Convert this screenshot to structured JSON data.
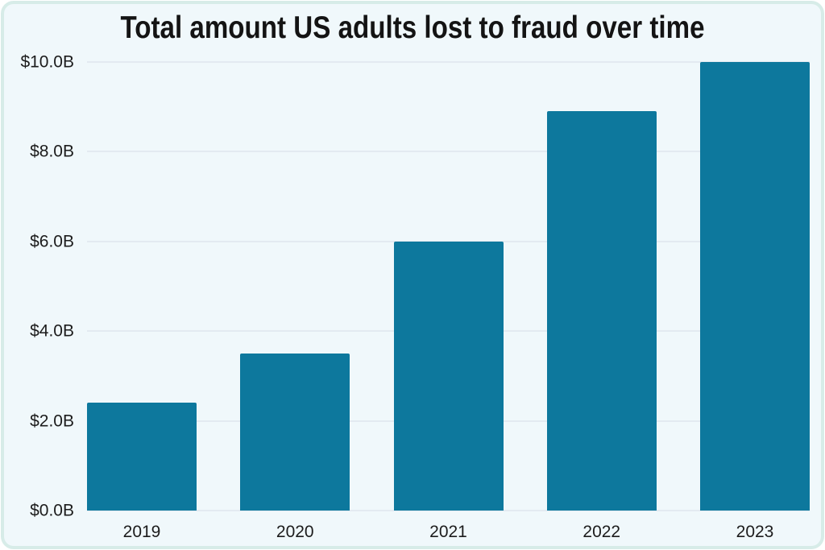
{
  "chart_data": {
    "type": "bar",
    "title": "Total amount US adults lost to fraud over time",
    "categories": [
      "2019",
      "2020",
      "2021",
      "2022",
      "2023"
    ],
    "values": [
      2.4,
      3.5,
      6.0,
      8.9,
      10.0
    ],
    "value_unit": "$B",
    "ylim": [
      0,
      10
    ],
    "yticks": [
      {
        "value": 0,
        "label": "$0.0B"
      },
      {
        "value": 2,
        "label": "$2.0B"
      },
      {
        "value": 4,
        "label": "$4.0B"
      },
      {
        "value": 6,
        "label": "$6.0B"
      },
      {
        "value": 8,
        "label": "$8.0B"
      },
      {
        "value": 10,
        "label": "$10.0B"
      }
    ],
    "grid": true,
    "legend_position": "none",
    "colors": {
      "bar": "#0d789d",
      "background": "#f0f8fb",
      "border": "#d7ece8",
      "gridline": "#e3eaf1",
      "title_text": "#141414",
      "tick_text": "#1c1c1c"
    }
  }
}
